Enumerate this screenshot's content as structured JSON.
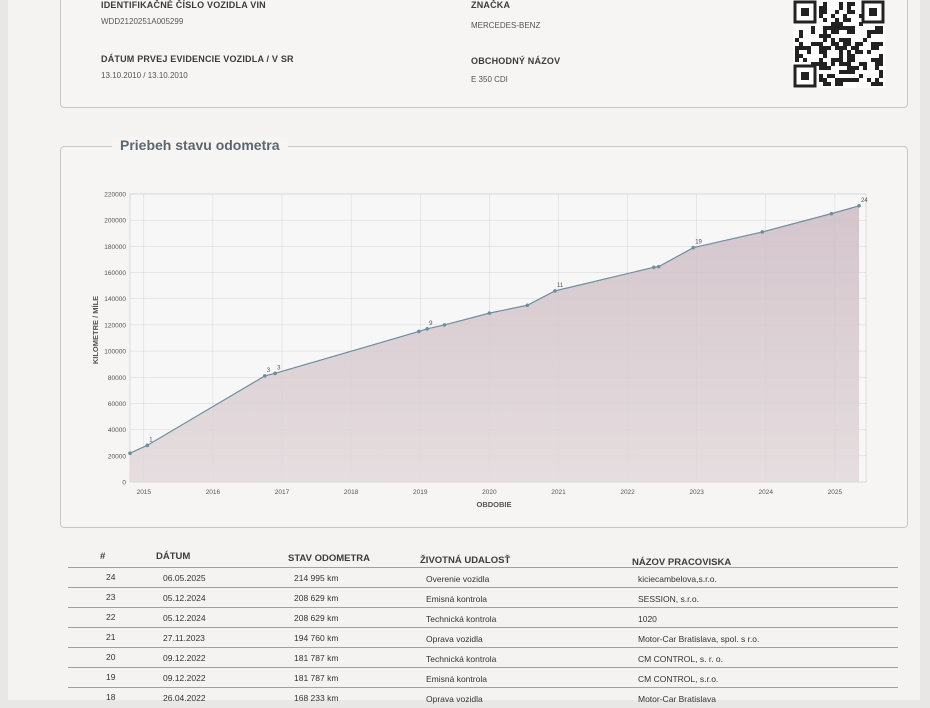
{
  "vehicle": {
    "vin_label": "IDENTIFIKAČNÉ ČÍSLO VOZIDLA VIN",
    "vin_value": "WDD2120251A005299",
    "brand_label": "ZNAČKA",
    "brand_value": "MERCEDES-BENZ",
    "reg_label": "DÁTUM PRVEJ EVIDENCIE VOZIDLA / V SR",
    "reg_value": "13.10.2010 / 13.10.2010",
    "trade_label": "OBCHODNÝ NÁZOV",
    "trade_value": "E 350 CDI"
  },
  "chart_section_title": "Priebeh stavu odometra",
  "chart_data": {
    "type": "area",
    "ylabel": "KILOMETRE / MÍLE",
    "xlabel": "OBDOBIE",
    "ylim": [
      0,
      220000
    ],
    "xlim": [
      2014.8,
      2025.45
    ],
    "y_ticks": [
      "0",
      "20000",
      "40000",
      "60000",
      "80000",
      "100000",
      "120000",
      "140000",
      "160000",
      "180000",
      "200000",
      "220000"
    ],
    "x_ticks": [
      "2015",
      "2016",
      "2017",
      "2018",
      "2019",
      "2020",
      "2021",
      "2022",
      "2023",
      "2024",
      "2025"
    ],
    "points": [
      {
        "x": 2014.8,
        "y": 22000,
        "label": ""
      },
      {
        "x": 2015.05,
        "y": 28000,
        "label": "1"
      },
      {
        "x": 2016.75,
        "y": 81000,
        "label": "3"
      },
      {
        "x": 2016.9,
        "y": 83000,
        "label": "3"
      },
      {
        "x": 2018.98,
        "y": 115000,
        "label": ""
      },
      {
        "x": 2019.1,
        "y": 117000,
        "label": "9"
      },
      {
        "x": 2019.35,
        "y": 120000,
        "label": ""
      },
      {
        "x": 2020.0,
        "y": 129000,
        "label": ""
      },
      {
        "x": 2020.55,
        "y": 135000,
        "label": ""
      },
      {
        "x": 2020.95,
        "y": 146000,
        "label": "11"
      },
      {
        "x": 2022.38,
        "y": 164000,
        "label": ""
      },
      {
        "x": 2022.45,
        "y": 164500,
        "label": ""
      },
      {
        "x": 2022.95,
        "y": 179000,
        "label": "19"
      },
      {
        "x": 2023.95,
        "y": 191000,
        "label": ""
      },
      {
        "x": 2024.95,
        "y": 205000,
        "label": ""
      },
      {
        "x": 2025.35,
        "y": 211000,
        "label": "24"
      }
    ]
  },
  "table": {
    "headers": [
      "#",
      "DÁTUM",
      "STAV ODOMETRA",
      "ŽIVOTNÁ UDALOSŤ",
      "NÁZOV PRACOVISKA"
    ],
    "rows": [
      {
        "n": "24",
        "date": "06.05.2025",
        "odo": "214 995 km",
        "event": "Overenie vozidla",
        "place": "kiciecambelova,s.r.o."
      },
      {
        "n": "23",
        "date": "05.12.2024",
        "odo": "208 629 km",
        "event": "Emisná kontrola",
        "place": "SESSION, s.r.o."
      },
      {
        "n": "22",
        "date": "05.12.2024",
        "odo": "208 629 km",
        "event": "Technická kontrola",
        "place": "1020"
      },
      {
        "n": "21",
        "date": "27.11.2023",
        "odo": "194 760 km",
        "event": "Oprava vozidla",
        "place": "Motor-Car Bratislava, spol. s r.o."
      },
      {
        "n": "20",
        "date": "09.12.2022",
        "odo": "181 787 km",
        "event": "Technická kontrola",
        "place": "CM CONTROL, s. r. o."
      },
      {
        "n": "19",
        "date": "09.12.2022",
        "odo": "181 787 km",
        "event": "Emisná kontrola",
        "place": "CM CONTROL, s.r.o."
      },
      {
        "n": "18",
        "date": "26.04.2022",
        "odo": "168 233 km",
        "event": "Oprava vozidla",
        "place": "Motor-Car Bratislava"
      }
    ]
  },
  "colors": {
    "line": "#6c8fa0",
    "fill_top": "#cdbcc4",
    "fill_bottom": "#dcd1d4"
  }
}
